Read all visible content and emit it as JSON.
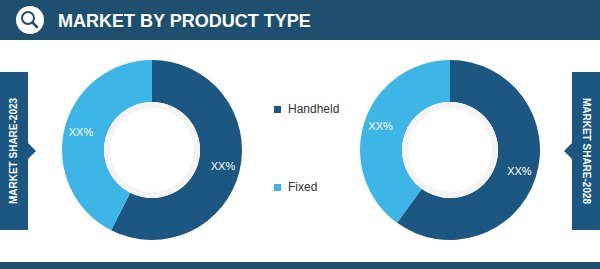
{
  "chart_data": {
    "type": "pie",
    "title": "MARKET BY PRODUCT TYPE",
    "categories": [
      "Handheld",
      "Fixed"
    ],
    "colors": [
      "#1b5780",
      "#3db5e6"
    ],
    "data_labels": true,
    "series": [
      {
        "name": "MARKET SHARE-2023",
        "values": [
          57.5,
          42.5
        ],
        "value_labels": [
          "XX%",
          "XX%"
        ]
      },
      {
        "name": "MARKET SHARE-2028",
        "values": [
          60,
          40
        ],
        "value_labels": [
          "XX%",
          "XX%"
        ]
      }
    ]
  }
}
